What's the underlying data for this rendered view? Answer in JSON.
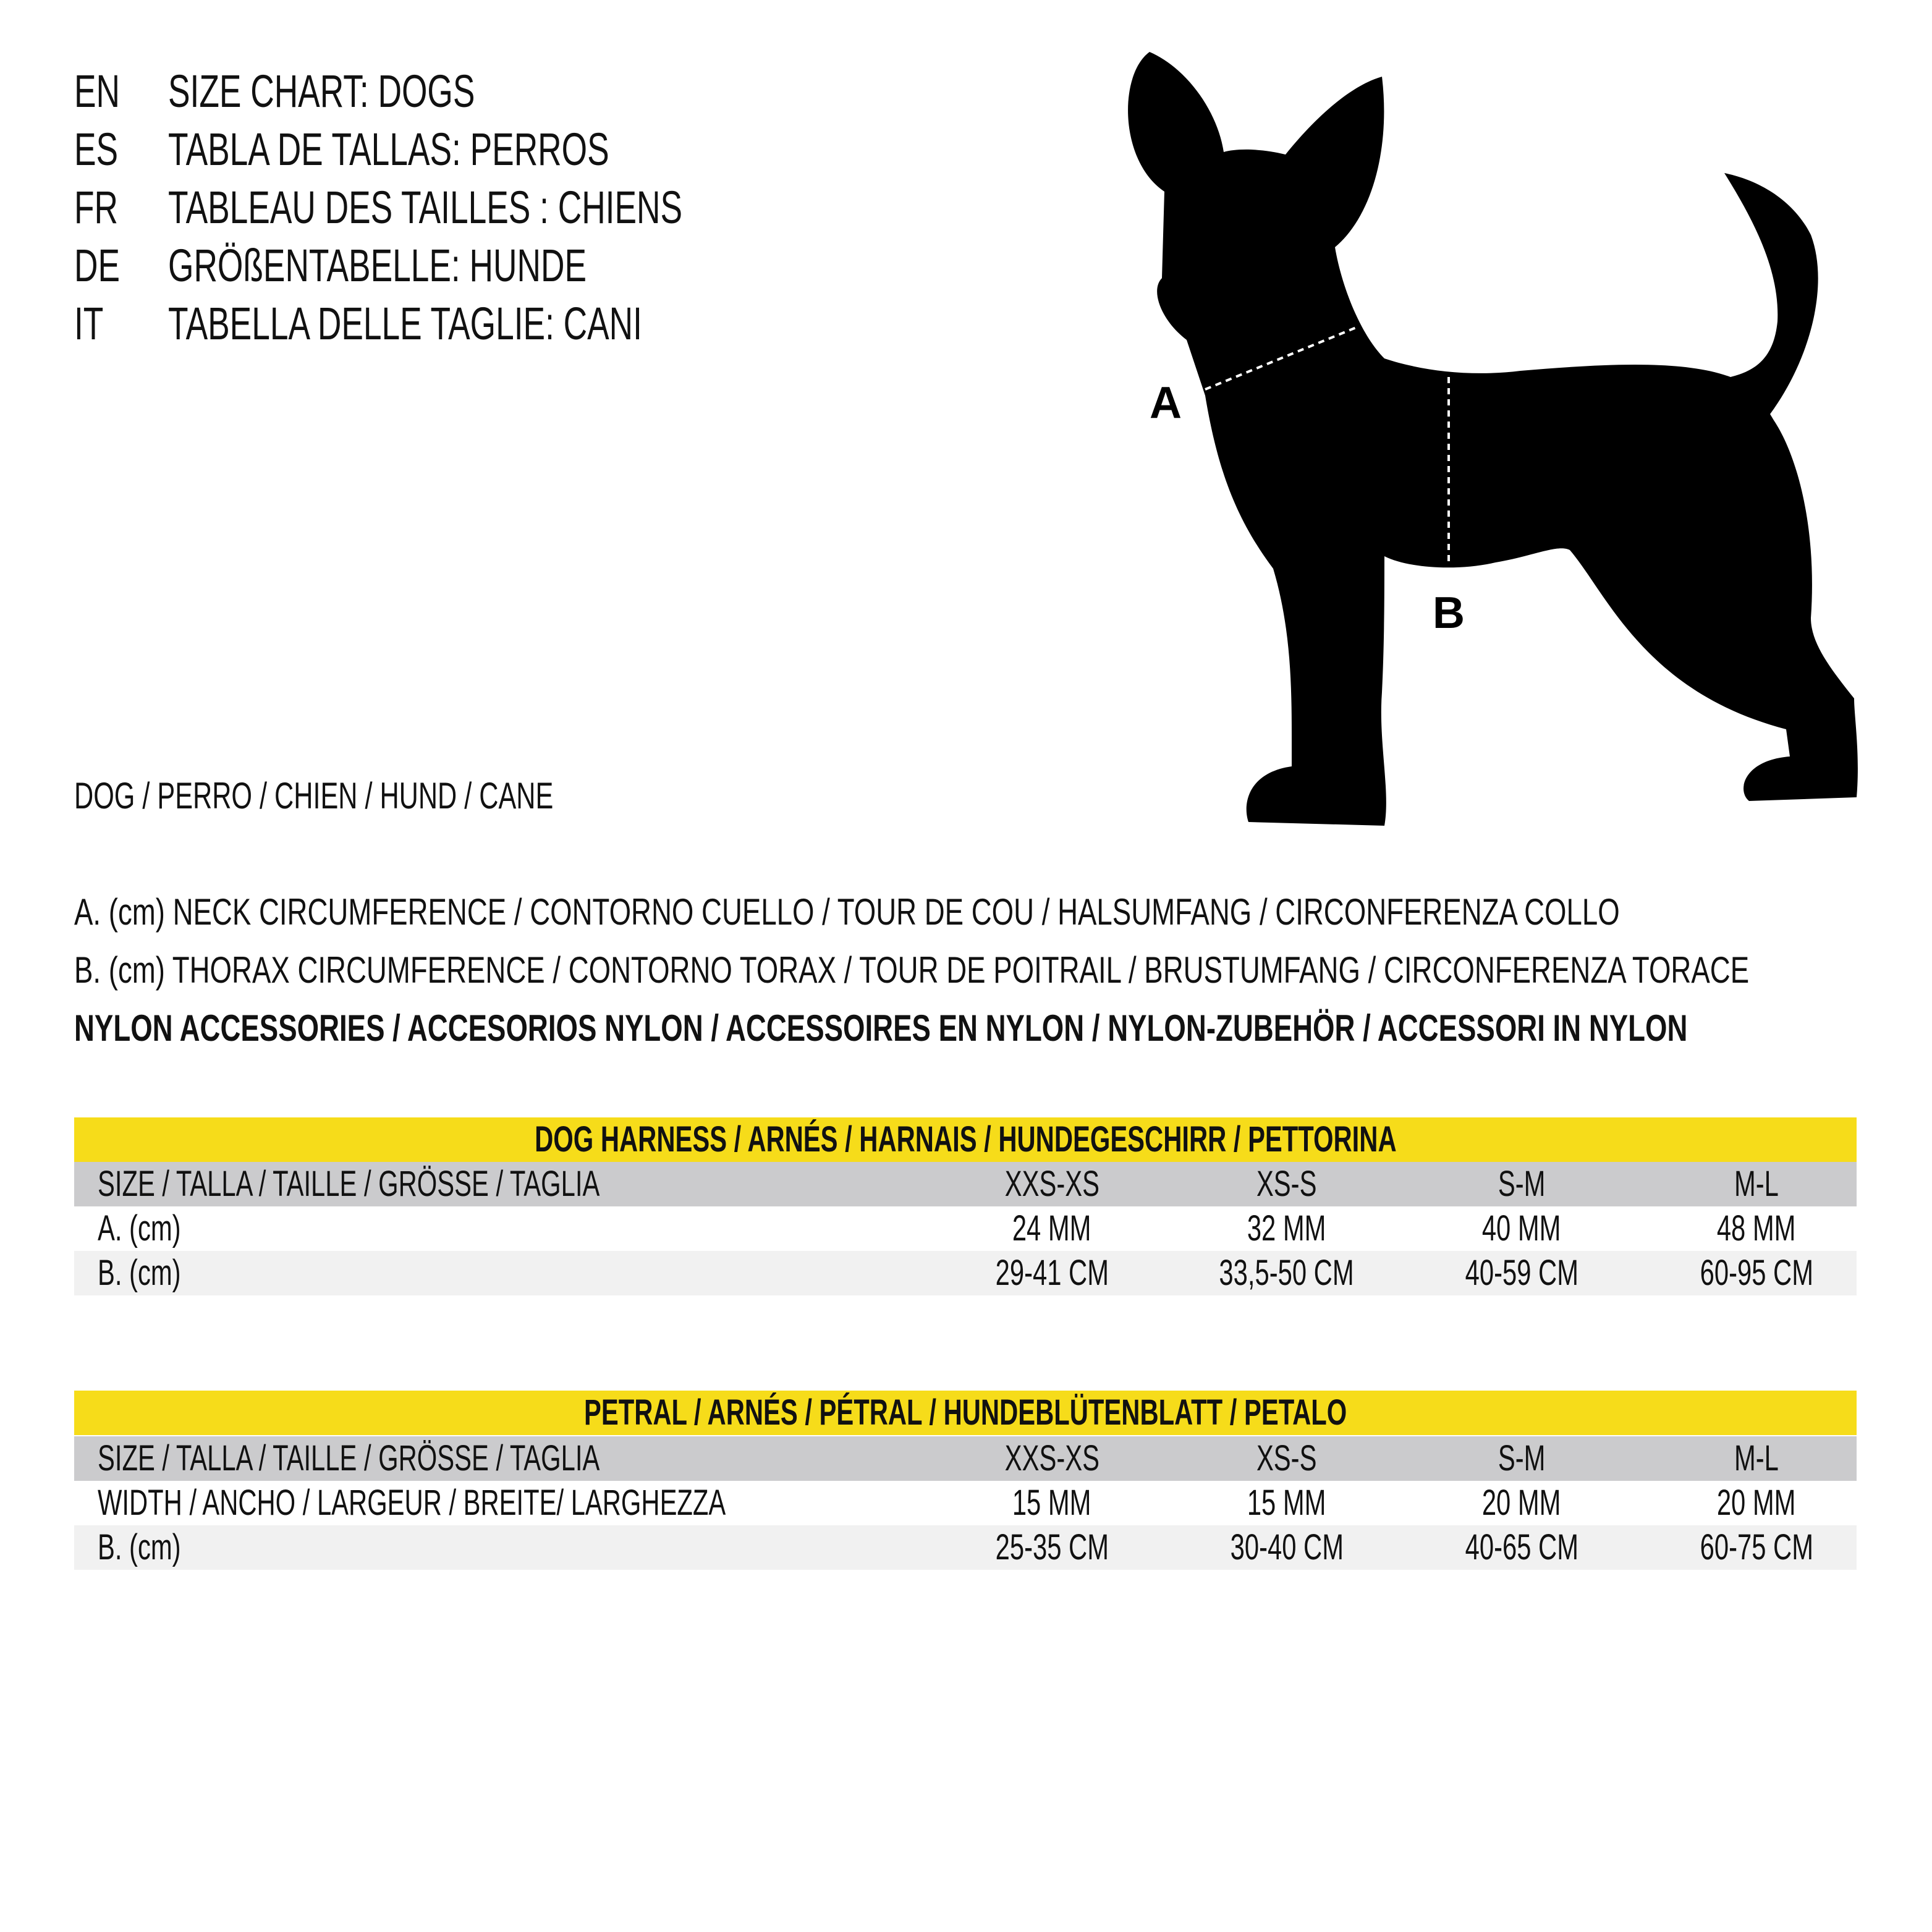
{
  "titles": [
    {
      "code": "EN",
      "text": "SIZE CHART: DOGS"
    },
    {
      "code": "ES",
      "text": "TABLA DE TALLAS: PERROS"
    },
    {
      "code": "FR",
      "text": "TABLEAU DES TAILLES : CHIENS"
    },
    {
      "code": "DE",
      "text": "GRÖßENTABELLE: HUNDE"
    },
    {
      "code": "IT",
      "text": "TABELLA DELLE TAGLIE: CANI"
    }
  ],
  "animal": "DOG / PERRO / CHIEN / HUND / CANE",
  "diagram": {
    "label_a": "A",
    "label_b": "B",
    "silhouette_color": "#000000"
  },
  "legend": {
    "a": "A. (cm) NECK CIRCUMFERENCE / CONTORNO CUELLO / TOUR DE COU / HALSUMFANG / CIRCONFERENZA COLLO",
    "b": "B. (cm) THORAX CIRCUMFERENCE / CONTORNO TORAX / TOUR DE POITRAIL / BRUSTUMFANG / CIRCONFERENZA TORACE",
    "nylon": "NYLON ACCESSORIES / ACCESORIOS NYLON / ACCESSOIRES EN NYLON / NYLON-ZUBEHÖR / ACCESSORI IN NYLON"
  },
  "colors": {
    "title_band": "#f6dc1a",
    "header_band": "#cbcbcd",
    "stripe": "#f1f1f1"
  },
  "tables": [
    {
      "title": "DOG HARNESS / ARNÉS / HARNAIS / HUNDEGESCHIRR / PETTORINA",
      "rows": [
        {
          "label": "SIZE / TALLA / TAILLE / GRÖSSE / TAGLIA",
          "values": [
            "XXS-XS",
            "XS-S",
            "S-M",
            "M-L"
          ]
        },
        {
          "label": "A. (cm)",
          "values": [
            "24 MM",
            "32 MM",
            "40 MM",
            "48 MM"
          ]
        },
        {
          "label": "B. (cm)",
          "values": [
            "29-41 CM",
            "33,5-50 CM",
            "40-59 CM",
            "60-95 CM"
          ]
        }
      ]
    },
    {
      "title": "PETRAL / ARNÉS  / PÉTRAL / HUNDEBLÜTENBLATT / PETALO",
      "rows": [
        {
          "label": "SIZE / TALLA / TAILLE / GRÖSSE / TAGLIA",
          "values": [
            "XXS-XS",
            "XS-S",
            "S-M",
            "M-L"
          ]
        },
        {
          "label": "WIDTH / ANCHO / LARGEUR / BREITE/ LARGHEZZA",
          "values": [
            "15 MM",
            "15 MM",
            "20 MM",
            "20 MM"
          ]
        },
        {
          "label": "B. (cm)",
          "values": [
            "25-35 CM",
            "30-40 CM",
            "40-65 CM",
            "60-75 CM"
          ]
        }
      ]
    }
  ]
}
